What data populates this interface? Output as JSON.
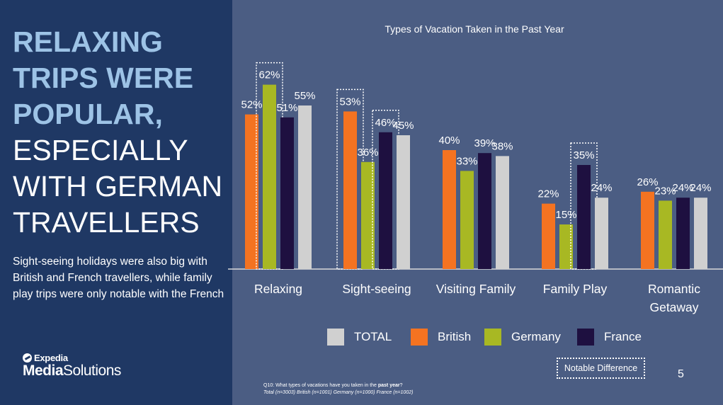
{
  "headline": {
    "highlight": [
      "RELAXING",
      "TRIPS WERE",
      "POPULAR,"
    ],
    "normal": [
      "ESPECIALLY",
      "WITH GERMAN",
      "TRAVELLERS"
    ]
  },
  "subtext": "Sight-seeing holidays were also big with British and French travellers, while family play trips were only notable with the French",
  "logo": {
    "brand_top": "Expedia",
    "brand_bottom_bold": "Media",
    "brand_bottom_rest": "Solutions"
  },
  "chart_data": {
    "type": "bar",
    "title": "Types of Vacation Taken in the Past Year",
    "categories": [
      "Relaxing",
      "Sight-seeing",
      "Visiting Family",
      "Family Play",
      "Romantic Getaway"
    ],
    "series": [
      {
        "name": "British",
        "values": [
          52,
          53,
          40,
          22,
          26
        ],
        "color": "#f47321"
      },
      {
        "name": "Germany",
        "values": [
          62,
          36,
          33,
          15,
          23
        ],
        "color": "#a8b823"
      },
      {
        "name": "France",
        "values": [
          51,
          46,
          39,
          35,
          24
        ],
        "color": "#1e1040"
      },
      {
        "name": "TOTAL",
        "values": [
          55,
          45,
          38,
          24,
          24
        ],
        "color": "#d0d0d0"
      }
    ],
    "legend_order": [
      "TOTAL",
      "British",
      "Germany",
      "France"
    ],
    "ylim": [
      0,
      70
    ],
    "notable": [
      {
        "category": "Relaxing",
        "series": "Germany"
      },
      {
        "category": "Sight-seeing",
        "series": "British"
      },
      {
        "category": "Sight-seeing",
        "series": "France"
      },
      {
        "category": "Family Play",
        "series": "France"
      }
    ]
  },
  "notable_label": "Notable Difference",
  "page_number": "5",
  "footnote": {
    "question_prefix": "Q10: What types of vacations have you taken in the ",
    "question_bold": "past year",
    "question_suffix": "?",
    "sample": "Total (n=3003) British (n=1001) Germany (n=1000) France (n=1002)"
  }
}
